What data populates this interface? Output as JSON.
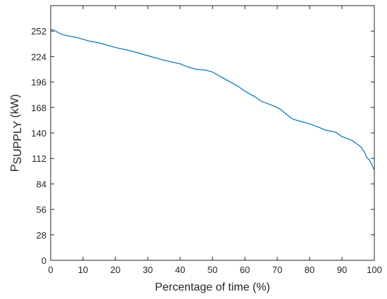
{
  "chart_data": {
    "type": "line",
    "title": "",
    "xlabel": "Percentage of time (%)",
    "ylabel": {
      "base": "P",
      "subscript": "SUPPLY",
      "unit": " (kW)"
    },
    "xlim": [
      0,
      100
    ],
    "ylim": [
      0,
      280
    ],
    "xticks": [
      0,
      10,
      20,
      30,
      40,
      50,
      60,
      70,
      80,
      90,
      100
    ],
    "yticks": [
      0,
      28,
      56,
      84,
      112,
      140,
      168,
      196,
      224,
      252
    ],
    "grid": false,
    "line_color": "#0072BD",
    "series": [
      {
        "x": [
          0,
          1,
          2,
          3,
          5,
          8,
          10,
          12,
          15,
          18,
          20,
          25,
          30,
          35,
          40,
          42,
          45,
          48,
          50,
          52,
          55,
          58,
          60,
          63,
          65,
          68,
          70,
          71,
          72,
          73,
          73.5,
          74,
          75,
          76,
          78,
          80,
          83,
          85,
          88,
          90,
          93,
          95,
          96,
          96.5,
          97,
          97.5,
          98,
          98.5,
          99,
          99.5,
          100
        ],
        "y": [
          254,
          253,
          251,
          249,
          247,
          245,
          243,
          241,
          239,
          236,
          234,
          230,
          225,
          220,
          216,
          213,
          210,
          209,
          207,
          203,
          197,
          191,
          186,
          180,
          175,
          171,
          168,
          166,
          163,
          160,
          159,
          157,
          155,
          154,
          152,
          150,
          146,
          143,
          141,
          136,
          132,
          127,
          124,
          121,
          119,
          114,
          112,
          110,
          107,
          103,
          99
        ]
      }
    ]
  }
}
